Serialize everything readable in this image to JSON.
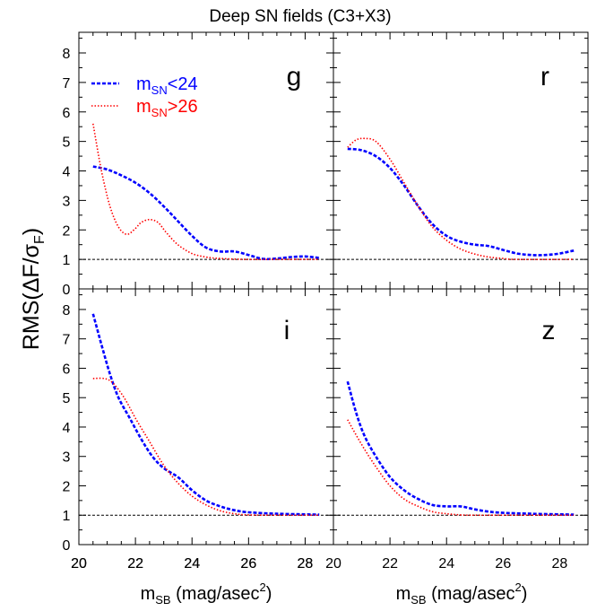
{
  "figure": {
    "title": "Deep SN fields (C3+X3)",
    "ylabel": {
      "main": "RMS(",
      "delta": "Δ",
      "f": "F/",
      "sigma": "σ",
      "sub": "F",
      "close": ")"
    },
    "xlabel": {
      "m": "m",
      "sub": "SB",
      "unit": " (mag/asec",
      "sup": "2",
      "close": ")"
    },
    "legend": [
      {
        "prefix": "m",
        "sub": "SN",
        "suffix": "<24",
        "color": "#0000ff",
        "style": "dashed"
      },
      {
        "prefix": "m",
        "sub": "SN",
        "suffix": ">26",
        "color": "#ff0000",
        "style": "dotted"
      }
    ]
  },
  "colors": {
    "blue": "#0000ff",
    "red": "#ff0000",
    "reference": "#000000"
  },
  "chart_data": [
    {
      "type": "line",
      "panel_label": "g",
      "xlim": [
        20,
        29
      ],
      "ylim": [
        0,
        8.7
      ],
      "xticks": [
        "20",
        "22",
        "24",
        "26",
        "28"
      ],
      "yticks": [
        "0",
        "1",
        "2",
        "3",
        "4",
        "5",
        "6",
        "7",
        "8"
      ],
      "reference_line": 1,
      "series": [
        {
          "name": "mSN<24",
          "color": "#0000ff",
          "style": "dashed",
          "x": [
            20.5,
            21.0,
            21.5,
            22.0,
            22.5,
            23.0,
            23.5,
            24.0,
            24.5,
            25.0,
            25.5,
            26.0,
            26.5,
            27.0,
            27.5,
            28.0,
            28.5
          ],
          "y": [
            4.15,
            4.05,
            3.85,
            3.6,
            3.25,
            2.8,
            2.3,
            1.8,
            1.4,
            1.27,
            1.27,
            1.15,
            1.02,
            1.03,
            1.08,
            1.1,
            1.05
          ]
        },
        {
          "name": "mSN>26",
          "color": "#ff0000",
          "style": "dotted",
          "x": [
            20.5,
            20.8,
            21.1,
            21.4,
            21.7,
            22.0,
            22.2,
            22.5,
            22.8,
            23.1,
            23.5,
            24.0,
            24.5,
            25.0,
            26.0,
            27.0,
            28.5
          ],
          "y": [
            5.6,
            4.0,
            2.8,
            2.1,
            1.85,
            2.05,
            2.25,
            2.35,
            2.25,
            1.9,
            1.5,
            1.2,
            1.08,
            1.03,
            1.0,
            1.0,
            1.0
          ]
        }
      ]
    },
    {
      "type": "line",
      "panel_label": "r",
      "xlim": [
        20,
        29
      ],
      "ylim": [
        0,
        8.7
      ],
      "xticks": [],
      "yticks": [],
      "reference_line": 1,
      "series": [
        {
          "name": "mSN<24",
          "color": "#0000ff",
          "style": "dashed",
          "x": [
            20.5,
            21.0,
            21.5,
            22.0,
            22.5,
            23.0,
            23.5,
            24.0,
            24.5,
            25.0,
            25.5,
            26.0,
            26.5,
            27.0,
            27.5,
            28.0,
            28.5
          ],
          "y": [
            4.75,
            4.7,
            4.5,
            4.1,
            3.5,
            2.8,
            2.2,
            1.8,
            1.6,
            1.5,
            1.45,
            1.32,
            1.2,
            1.15,
            1.15,
            1.2,
            1.3
          ]
        },
        {
          "name": "mSN>26",
          "color": "#ff0000",
          "style": "dotted",
          "x": [
            20.5,
            20.8,
            21.1,
            21.5,
            22.0,
            22.5,
            23.0,
            23.5,
            24.0,
            24.5,
            25.0,
            25.5,
            26.0,
            26.5,
            28.5
          ],
          "y": [
            4.8,
            5.05,
            5.1,
            5.0,
            4.4,
            3.6,
            2.8,
            2.1,
            1.65,
            1.35,
            1.18,
            1.08,
            1.03,
            1.0,
            1.0
          ]
        }
      ]
    },
    {
      "type": "line",
      "panel_label": "i",
      "xlim": [
        20,
        29
      ],
      "ylim": [
        0,
        8.7
      ],
      "xticks": [
        "20",
        "22",
        "24",
        "26",
        "28"
      ],
      "yticks": [
        "0",
        "1",
        "2",
        "3",
        "4",
        "5",
        "6",
        "7",
        "8"
      ],
      "reference_line": 1,
      "series": [
        {
          "name": "mSN<24",
          "color": "#0000ff",
          "style": "dashed",
          "x": [
            20.5,
            20.8,
            21.1,
            21.4,
            21.8,
            22.2,
            22.6,
            23.0,
            23.5,
            24.0,
            24.5,
            25.0,
            25.5,
            26.0,
            27.0,
            28.0,
            28.5
          ],
          "y": [
            7.85,
            6.8,
            5.8,
            5.0,
            4.3,
            3.6,
            3.0,
            2.6,
            2.3,
            1.85,
            1.5,
            1.3,
            1.17,
            1.1,
            1.05,
            1.03,
            1.02
          ]
        },
        {
          "name": "mSN>26",
          "color": "#ff0000",
          "style": "dotted",
          "x": [
            20.5,
            20.9,
            21.2,
            21.6,
            22.0,
            22.5,
            23.0,
            23.5,
            24.0,
            24.5,
            25.0,
            25.5,
            26.0,
            27.0,
            28.5
          ],
          "y": [
            5.65,
            5.65,
            5.5,
            5.0,
            4.3,
            3.5,
            2.7,
            2.1,
            1.65,
            1.35,
            1.15,
            1.05,
            1.01,
            1.0,
            1.0
          ]
        }
      ]
    },
    {
      "type": "line",
      "panel_label": "z",
      "xlim": [
        20,
        29
      ],
      "ylim": [
        0,
        8.7
      ],
      "xticks": [
        "20",
        "22",
        "24",
        "26",
        "28"
      ],
      "yticks": [],
      "reference_line": 1,
      "series": [
        {
          "name": "mSN<24",
          "color": "#0000ff",
          "style": "dashed",
          "x": [
            20.5,
            20.8,
            21.1,
            21.5,
            22.0,
            22.5,
            23.0,
            23.5,
            24.0,
            24.5,
            25.0,
            25.5,
            26.0,
            27.0,
            28.0,
            28.5
          ],
          "y": [
            5.55,
            4.5,
            3.7,
            3.0,
            2.3,
            1.85,
            1.55,
            1.35,
            1.3,
            1.3,
            1.2,
            1.12,
            1.08,
            1.05,
            1.03,
            1.02
          ]
        },
        {
          "name": "mSN>26",
          "color": "#ff0000",
          "style": "dotted",
          "x": [
            20.5,
            21.0,
            21.5,
            22.0,
            22.5,
            23.0,
            23.5,
            24.0,
            24.5,
            25.0,
            26.0,
            27.0,
            28.5
          ],
          "y": [
            4.25,
            3.4,
            2.65,
            2.0,
            1.55,
            1.3,
            1.12,
            1.05,
            1.01,
            1.0,
            1.0,
            1.0,
            1.0
          ]
        }
      ]
    }
  ]
}
